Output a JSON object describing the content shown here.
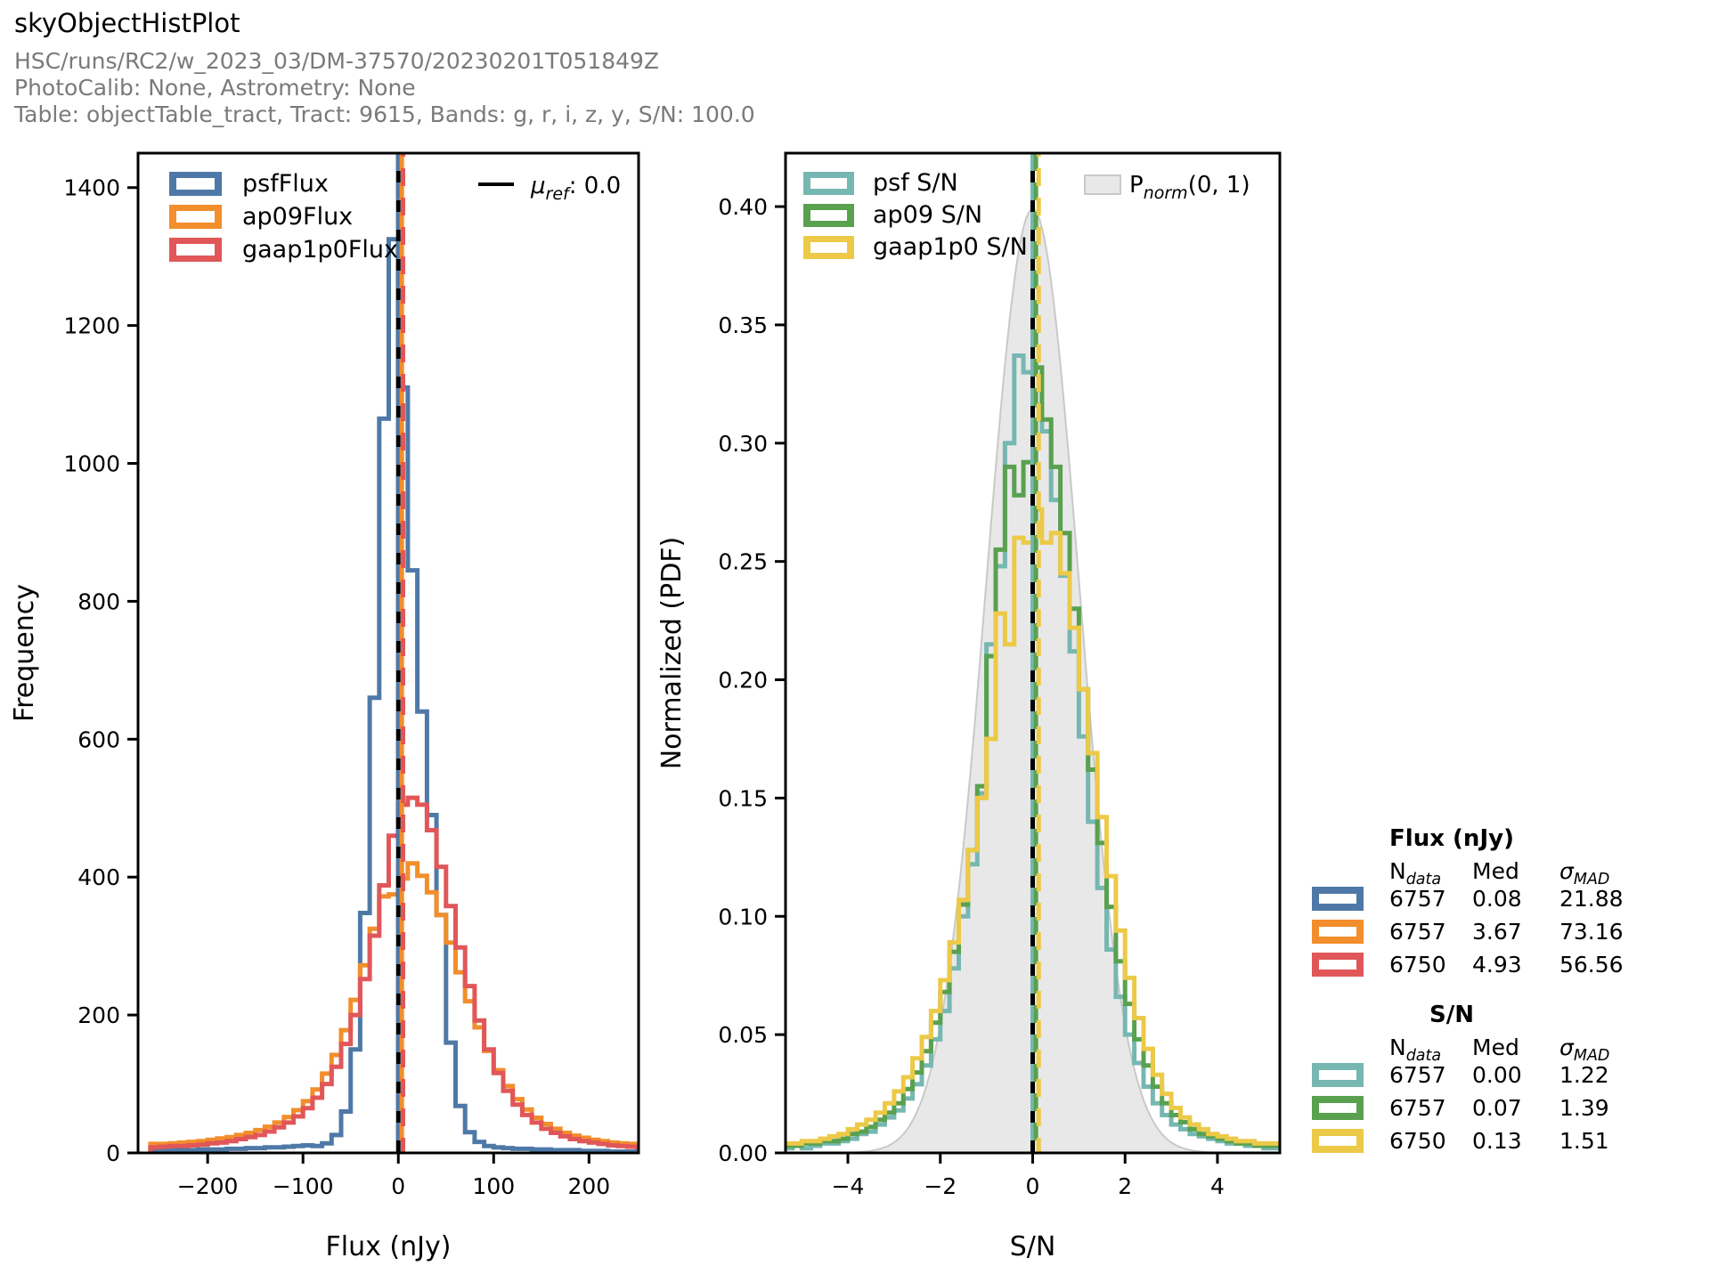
{
  "header": {
    "title": "skyObjectHistPlot",
    "subtitle_run": "HSC/runs/RC2/w_2023_03/DM-37570/20230201T051849Z",
    "subtitle_calib": "PhotoCalib: None, Astrometry: None",
    "subtitle_table": "Table: objectTable_tract, Tract: 9615, Bands: g, r, i, z, y, S/N: 100.0"
  },
  "colors": {
    "psf_flux": "#4e79a7",
    "ap09_flux": "#f28e2b",
    "gaap_flux": "#e15759",
    "psf_sn": "#76b7b2",
    "ap09_sn": "#59a14f",
    "gaap_sn": "#edc948",
    "ref_line": "#000000",
    "norm_fill": "#e8e8e8",
    "norm_edge": "#c9c9c9",
    "subtitle_gray": "#7a7a7a"
  },
  "chart_data": [
    {
      "id": "flux",
      "type": "bar",
      "subtype": "step-histogram",
      "xlabel": "Flux (nJy)",
      "ylabel": "Frequency",
      "xlim": [
        -273,
        252
      ],
      "ylim": [
        0,
        1450
      ],
      "xticks": [
        -200,
        -100,
        0,
        100,
        200
      ],
      "yticks": [
        0,
        200,
        400,
        600,
        800,
        1000,
        1200,
        1400
      ],
      "y_tick_decimals": 0,
      "grid": false,
      "legend_position": "upper-left-inside",
      "bin_start": -260,
      "bin_width": 10,
      "series": [
        {
          "name": "psfFlux",
          "color": "#4e79a7",
          "values": [
            3,
            3,
            4,
            4,
            4,
            5,
            5,
            5,
            6,
            6,
            7,
            7,
            8,
            8,
            9,
            10,
            11,
            10,
            14,
            26,
            60,
            150,
            348,
            660,
            1065,
            1325,
            1110,
            845,
            640,
            490,
            345,
            160,
            68,
            30,
            16,
            10,
            8,
            7,
            6,
            6,
            5,
            5,
            4,
            4,
            4,
            3,
            3,
            3,
            2,
            2,
            2,
            2
          ]
        },
        {
          "name": "ap09Flux",
          "color": "#f28e2b",
          "values": [
            13,
            13,
            14,
            15,
            16,
            17,
            19,
            21,
            23,
            26,
            29,
            33,
            38,
            44,
            52,
            62,
            75,
            92,
            115,
            142,
            178,
            222,
            272,
            325,
            372,
            375,
            398,
            420,
            402,
            378,
            345,
            305,
            262,
            220,
            182,
            148,
            120,
            97,
            78,
            63,
            51,
            42,
            35,
            29,
            25,
            22,
            19,
            17,
            15,
            14,
            13,
            13
          ]
        },
        {
          "name": "gaap1p0Flux",
          "color": "#e15759",
          "values": [
            8,
            9,
            10,
            10,
            11,
            12,
            14,
            15,
            17,
            20,
            23,
            26,
            31,
            37,
            44,
            53,
            65,
            80,
            100,
            125,
            158,
            200,
            252,
            315,
            388,
            460,
            505,
            515,
            505,
            468,
            415,
            358,
            298,
            242,
            192,
            150,
            116,
            90,
            70,
            55,
            44,
            35,
            29,
            24,
            20,
            17,
            15,
            13,
            11,
            10,
            9,
            8
          ]
        }
      ],
      "ref_line": {
        "value": 0,
        "color": "#000000",
        "label": {
          "parts": [
            {
              "t": "μ",
              "i": 1
            },
            {
              "t": "ref",
              "i": 1,
              "s": 1
            },
            {
              "t": ": 0.0"
            }
          ]
        }
      },
      "median_lines": [
        {
          "name": "psfFlux median",
          "value": 0.08,
          "color": "#4e79a7"
        },
        {
          "name": "ap09Flux median",
          "value": 3.67,
          "color": "#f28e2b"
        },
        {
          "name": "gaap1p0Flux median",
          "value": 4.93,
          "color": "#e15759"
        }
      ]
    },
    {
      "id": "sn",
      "type": "bar",
      "subtype": "step-histogram-pdf",
      "xlabel": "S/N",
      "ylabel": "Normalized (PDF)",
      "xlim": [
        -5.35,
        5.35
      ],
      "ylim": [
        0,
        0.4226
      ],
      "xticks": [
        -4,
        -2,
        0,
        2,
        4
      ],
      "yticks": [
        0,
        0.05,
        0.1,
        0.15,
        0.2,
        0.25,
        0.3,
        0.35,
        0.4
      ],
      "y_tick_decimals": 2,
      "grid": false,
      "legend_position": "upper-left-inside",
      "bin_start": -5.4,
      "bin_width": 0.2,
      "series": [
        {
          "name": "psf S/N",
          "color": "#76b7b2",
          "values": [
            0.002,
            0.003,
            0.002,
            0.003,
            0.004,
            0.004,
            0.005,
            0.006,
            0.008,
            0.009,
            0.012,
            0.015,
            0.018,
            0.023,
            0.029,
            0.037,
            0.048,
            0.06,
            0.078,
            0.1,
            0.122,
            0.152,
            0.215,
            0.248,
            0.3,
            0.337,
            0.33,
            0.316,
            0.305,
            0.276,
            0.244,
            0.212,
            0.176,
            0.14,
            0.112,
            0.086,
            0.066,
            0.05,
            0.038,
            0.028,
            0.021,
            0.016,
            0.012,
            0.01,
            0.008,
            0.007,
            0.006,
            0.005,
            0.004,
            0.004,
            0.003,
            0.003,
            0.002,
            0.002
          ]
        },
        {
          "name": "ap09 S/N",
          "color": "#59a14f",
          "values": [
            0.003,
            0.003,
            0.004,
            0.004,
            0.005,
            0.005,
            0.006,
            0.008,
            0.009,
            0.011,
            0.014,
            0.017,
            0.021,
            0.027,
            0.034,
            0.043,
            0.055,
            0.068,
            0.085,
            0.105,
            0.128,
            0.155,
            0.21,
            0.255,
            0.29,
            0.278,
            0.292,
            0.332,
            0.31,
            0.29,
            0.262,
            0.23,
            0.196,
            0.162,
            0.131,
            0.104,
            0.081,
            0.063,
            0.048,
            0.037,
            0.028,
            0.021,
            0.016,
            0.013,
            0.01,
            0.008,
            0.007,
            0.006,
            0.005,
            0.004,
            0.004,
            0.003,
            0.003,
            0.003
          ]
        },
        {
          "name": "gaap1p0 S/N",
          "color": "#edc948",
          "values": [
            0.004,
            0.004,
            0.005,
            0.005,
            0.006,
            0.007,
            0.008,
            0.01,
            0.012,
            0.014,
            0.017,
            0.021,
            0.026,
            0.032,
            0.04,
            0.049,
            0.06,
            0.073,
            0.089,
            0.107,
            0.128,
            0.15,
            0.175,
            0.228,
            0.215,
            0.26,
            0.258,
            0.272,
            0.258,
            0.262,
            0.245,
            0.222,
            0.196,
            0.169,
            0.142,
            0.117,
            0.094,
            0.074,
            0.057,
            0.044,
            0.033,
            0.025,
            0.019,
            0.015,
            0.012,
            0.01,
            0.008,
            0.007,
            0.006,
            0.005,
            0.005,
            0.004,
            0.004,
            0.004
          ]
        }
      ],
      "normal_pdf": {
        "mean": 0,
        "sigma": 1,
        "peak": 0.3989,
        "fill": "#e8e8e8",
        "edge": "#c9c9c9",
        "label": {
          "parts": [
            {
              "t": "P"
            },
            {
              "t": "norm",
              "i": 1,
              "s": 1
            },
            {
              "t": "(0, 1)"
            }
          ]
        }
      },
      "ref_line": {
        "value": 0,
        "color": "#000000"
      },
      "median_lines": [
        {
          "name": "psf S/N median",
          "value": 0.0,
          "color": "#76b7b2"
        },
        {
          "name": "ap09 S/N median",
          "value": 0.07,
          "color": "#59a14f"
        },
        {
          "name": "gaap1p0 S/N median",
          "value": 0.13,
          "color": "#edc948"
        }
      ]
    }
  ],
  "stats": {
    "tables": [
      {
        "title": "Flux (nJy)",
        "col_headers": [
          {
            "parts": [
              {
                "t": "N"
              },
              {
                "t": "data",
                "i": 1,
                "s": 1
              }
            ]
          },
          {
            "parts": [
              {
                "t": "Med"
              }
            ]
          },
          {
            "parts": [
              {
                "t": "σ",
                "i": 1
              },
              {
                "t": "MAD",
                "i": 1,
                "s": 1
              }
            ]
          }
        ],
        "rows": [
          {
            "series": "psfFlux",
            "color": "#4e79a7",
            "n": "6757",
            "med": "0.08",
            "sigma": "21.88"
          },
          {
            "series": "ap09Flux",
            "color": "#f28e2b",
            "n": "6757",
            "med": "3.67",
            "sigma": "73.16"
          },
          {
            "series": "gaap1p0Flux",
            "color": "#e15759",
            "n": "6750",
            "med": "4.93",
            "sigma": "56.56"
          }
        ]
      },
      {
        "title": "S/N",
        "col_headers": [
          {
            "parts": [
              {
                "t": "N"
              },
              {
                "t": "data",
                "i": 1,
                "s": 1
              }
            ]
          },
          {
            "parts": [
              {
                "t": "Med"
              }
            ]
          },
          {
            "parts": [
              {
                "t": "σ",
                "i": 1
              },
              {
                "t": "MAD",
                "i": 1,
                "s": 1
              }
            ]
          }
        ],
        "rows": [
          {
            "series": "psf S/N",
            "color": "#76b7b2",
            "n": "6757",
            "med": "0.00",
            "sigma": "1.22"
          },
          {
            "series": "ap09 S/N",
            "color": "#59a14f",
            "n": "6757",
            "med": "0.07",
            "sigma": "1.39"
          },
          {
            "series": "gaap1p0 S/N",
            "color": "#edc948",
            "n": "6750",
            "med": "0.13",
            "sigma": "1.51"
          }
        ]
      }
    ]
  }
}
